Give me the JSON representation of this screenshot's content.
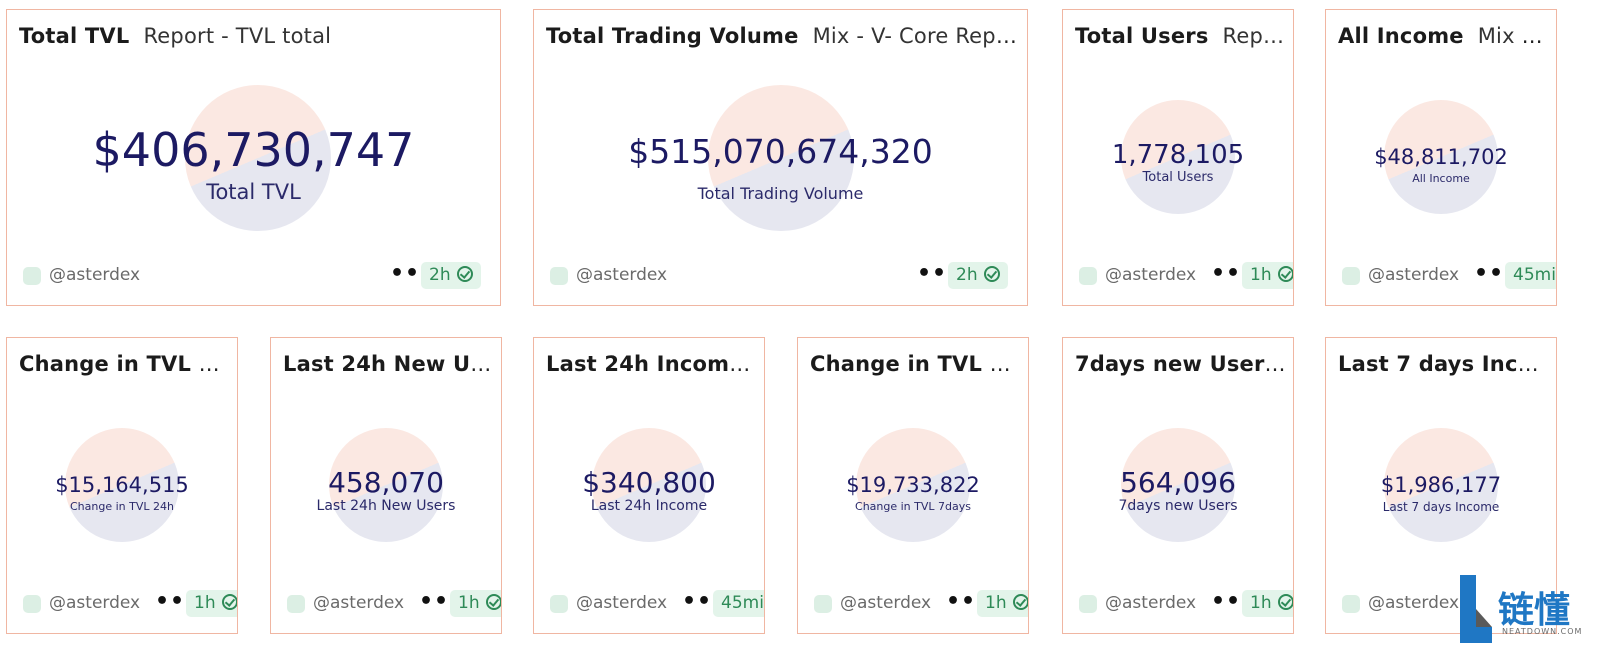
{
  "cards": [
    {
      "title": "Total TVL",
      "subtitle": "Report - TVL total",
      "value": "$406,730,747",
      "caption": "Total TVL",
      "author": "@asterdex",
      "menu": "•••",
      "freshness": "2h"
    },
    {
      "title": "Total Trading Volume",
      "subtitle": "Mix - V- Core Report",
      "value": "$515,070,674,320",
      "caption": "Total Trading Volume",
      "author": "@asterdex",
      "menu": "•••",
      "freshness": "2h"
    },
    {
      "title": "Total Users",
      "subtitle": "Rep…",
      "value": "1,778,105",
      "caption": "Total Users",
      "author": "@asterdex",
      "menu": "•••",
      "freshness": "1h"
    },
    {
      "title": "All Income",
      "subtitle": "Mix -…",
      "value": "$48,811,702",
      "caption": "All Income",
      "author": "@asterdex",
      "menu": "•••",
      "freshness": "45mi"
    },
    {
      "title": "Change in TVL 24…",
      "subtitle": "",
      "value": "$15,164,515",
      "caption": "Change in TVL 24h",
      "author": "@asterdex",
      "menu": "•••",
      "freshness": "1h"
    },
    {
      "title": "Last 24h New Us…",
      "subtitle": "",
      "value": "458,070",
      "caption": "Last 24h New Users",
      "author": "@asterdex",
      "menu": "•••",
      "freshness": "1h"
    },
    {
      "title": "Last 24h Income…",
      "subtitle": "",
      "value": "$340,800",
      "caption": "Last 24h Income",
      "author": "@asterdex",
      "menu": "•••",
      "freshness": "45mi"
    },
    {
      "title": "Change in TVL 7d…",
      "subtitle": "",
      "value": "$19,733,822",
      "caption": "Change in TVL 7days",
      "author": "@asterdex",
      "menu": "•••",
      "freshness": "1h"
    },
    {
      "title": "7days new Users…",
      "subtitle": "",
      "value": "564,096",
      "caption": "7days new Users",
      "author": "@asterdex",
      "menu": "•••",
      "freshness": "1h"
    },
    {
      "title": "Last 7 days Inco…",
      "subtitle": "",
      "value": "$1,986,177",
      "caption": "Last 7 days Income",
      "author": "@asterdex",
      "menu": "",
      "freshness": ""
    }
  ],
  "watermark": {
    "text": "链懂",
    "sub": "NEATDOWN.COM"
  },
  "colors": {
    "border": "#f0b6a2",
    "value": "#1c1a63",
    "fresh_bg": "#e3f4ea",
    "fresh_fg": "#2e8a57"
  }
}
